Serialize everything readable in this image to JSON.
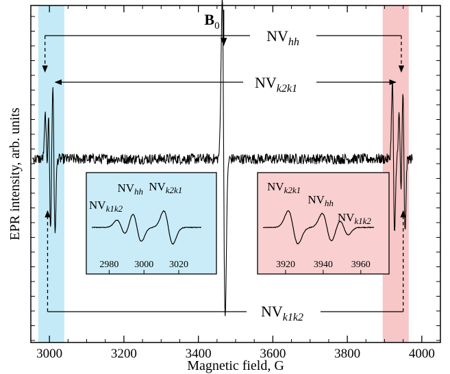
{
  "chart_data": {
    "type": "line",
    "title": "",
    "xlabel": "Magnetic field, G",
    "ylabel": "EPR intensity, arb. units",
    "xlim": [
      2950,
      4050
    ],
    "x_ticks": [
      3000,
      3200,
      3400,
      3600,
      3800,
      4000
    ],
    "y_ticks_labeled": false,
    "grid": false,
    "background": "#ffffff",
    "colors": {
      "trace": "#000000",
      "left_band": "#b8e6f5",
      "right_band": "#f6bcbc",
      "left_inset_fill": "#c9ecf8",
      "right_inset_fill": "#f9cfcf"
    },
    "highlight_bands": [
      {
        "name": "left-band",
        "x_range": [
          2970,
          3040
        ]
      },
      {
        "name": "right-band",
        "x_range": [
          3895,
          3965
        ]
      }
    ],
    "field_marker": {
      "text": "B",
      "sub": "0",
      "x": 3468
    },
    "main_trace": {
      "baseline_noise_amplitude": 0.18,
      "lines": [
        {
          "label": "NVk1k2",
          "center": 3000,
          "amplitude": 2.5,
          "width": 3
        },
        {
          "label": "NVhh",
          "center": 2992,
          "amplitude": 1.5,
          "width": 3
        },
        {
          "label": "NVk2k1",
          "center": 3012,
          "amplitude": 2.6,
          "width": 3
        },
        {
          "label": "B0",
          "center": 3468,
          "amplitude": 5.5,
          "width": 4
        },
        {
          "label": "NVk2k1",
          "center": 3924,
          "amplitude": 2.6,
          "width": 3
        },
        {
          "label": "NVhh",
          "center": 3942,
          "amplitude": 1.5,
          "width": 3
        },
        {
          "label": "NVk1k2",
          "center": 3952,
          "amplitude": 2.5,
          "width": 3
        }
      ]
    },
    "annotations": [
      {
        "label_main": "NV",
        "label_sub": "hh",
        "from": 2988,
        "to": 3945,
        "position": "top"
      },
      {
        "label_main": "NV",
        "label_sub": "k2k1",
        "from": 3012,
        "to": 3930,
        "position": "upper"
      },
      {
        "label_main": "NV",
        "label_sub": "k1k2",
        "from": 2995,
        "to": 3950,
        "position": "bottom"
      }
    ],
    "insets": [
      {
        "name": "left-inset",
        "xlim": [
          2970,
          3033
        ],
        "x_ticks": [
          2980,
          3000,
          3020
        ],
        "labels": [
          {
            "main": "NV",
            "sub": "k1k2",
            "x": 2986
          },
          {
            "main": "NV",
            "sub": "hh",
            "x": 2995
          },
          {
            "main": "NV",
            "sub": "k2k1",
            "x": 3013
          }
        ],
        "lines": [
          {
            "center": 2987,
            "amplitude": 0.45,
            "width": 2.5
          },
          {
            "center": 2996,
            "amplitude": 0.85,
            "width": 2.5
          },
          {
            "center": 3014,
            "amplitude": 1.0,
            "width": 2.6
          }
        ]
      },
      {
        "name": "right-inset",
        "xlim": [
          3908,
          3967
        ],
        "x_ticks": [
          3920,
          3940,
          3960
        ],
        "labels": [
          {
            "main": "NV",
            "sub": "k2k1",
            "x": 3924
          },
          {
            "main": "NV",
            "sub": "hh",
            "x": 3942
          },
          {
            "main": "NV",
            "sub": "k1k2",
            "x": 3952
          }
        ],
        "lines": [
          {
            "center": 3924,
            "amplitude": 1.0,
            "width": 2.6
          },
          {
            "center": 3942,
            "amplitude": 0.85,
            "width": 2.5
          },
          {
            "center": 3951,
            "amplitude": 0.45,
            "width": 2.3
          }
        ]
      }
    ]
  }
}
